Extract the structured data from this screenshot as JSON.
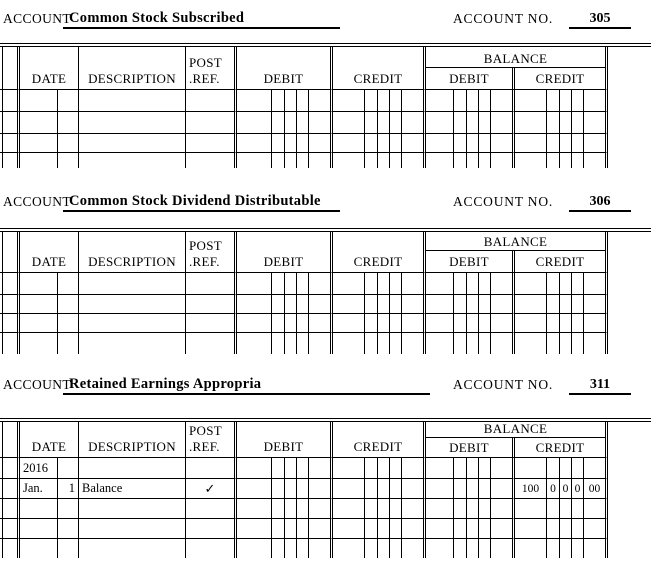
{
  "colors": {
    "background": "#ffffff",
    "line": "#000000",
    "text": "#000000"
  },
  "column_headers": {
    "date": "DATE",
    "description": "DESCRIPTION",
    "post_ref_line1": "POST",
    "post_ref_line2": ".REF.",
    "debit": "DEBIT",
    "credit": "CREDIT",
    "balance": "BALANCE",
    "balance_debit": "DEBIT",
    "balance_credit": "CREDIT"
  },
  "ledgers": [
    {
      "account": {
        "label": "ACCOUNT",
        "name": "Common Stock Subscribed",
        "no_label": "ACCOUNT NO.",
        "no": "305"
      },
      "rows": [
        {},
        {},
        {},
        {}
      ]
    },
    {
      "account": {
        "label": "ACCOUNT",
        "name": "Common Stock Dividend Distributable",
        "no_label": "ACCOUNT NO.",
        "no": "306"
      },
      "rows": [
        {},
        {},
        {},
        {}
      ]
    },
    {
      "account": {
        "label": "ACCOUNT",
        "name": "Retained Earnings Appropria",
        "no_label": "ACCOUNT NO.",
        "no": "311"
      },
      "rows": [
        {
          "date_month": "2016"
        },
        {
          "date_month": "Jan.",
          "date_day": "1",
          "description": "Balance",
          "post_ref": "✓",
          "balance_credit": [
            "100",
            "0",
            "0",
            "0",
            "00"
          ]
        },
        {},
        {},
        {}
      ]
    }
  ]
}
